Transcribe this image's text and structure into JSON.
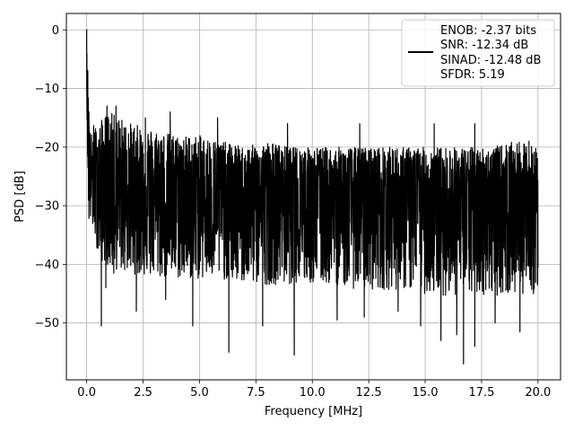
{
  "chart_data": {
    "type": "line",
    "title": "",
    "xlabel": "Frequency [MHz]",
    "ylabel": "PSD [dB]",
    "xlim": [
      -0.9,
      21.0
    ],
    "ylim": [
      -59.7,
      2.8
    ],
    "xticks": [
      0.0,
      2.5,
      5.0,
      7.5,
      10.0,
      12.5,
      15.0,
      17.5,
      20.0
    ],
    "xtick_labels": [
      "0.0",
      "2.5",
      "5.0",
      "7.5",
      "10.0",
      "12.5",
      "15.0",
      "17.5",
      "20.0"
    ],
    "yticks": [
      0,
      -10,
      -20,
      -30,
      -40,
      -50
    ],
    "ytick_labels": [
      "0",
      "−10",
      "−20",
      "−30",
      "−40",
      "−50"
    ],
    "grid": true,
    "legend_placement": "top-right",
    "line_color": "#000000",
    "legend": {
      "lines": [
        "ENOB: -2.37 bits",
        "SNR: -12.34 dB",
        "SINAD: -12.48 dB",
        "SFDR: 5.19"
      ]
    },
    "series": [
      {
        "x": [
          0.0,
          0.02,
          0.05,
          0.08,
          0.1,
          0.15,
          0.2,
          0.3,
          0.5,
          0.7,
          1.0,
          2.0,
          3.0,
          4.0,
          5.0,
          6.0,
          7.0,
          8.0,
          9.0,
          10.0,
          11.0,
          12.0,
          13.0,
          14.0,
          15.0,
          16.0,
          17.0,
          18.0,
          19.0,
          20.0
        ],
        "upper": [
          0,
          -5,
          -8,
          -12,
          -15,
          -17,
          -18,
          -16,
          -17,
          -15,
          -14,
          -16,
          -17,
          -18,
          -18,
          -19,
          -20,
          -19,
          -20,
          -20,
          -20,
          -20,
          -20,
          -20,
          -20,
          -20,
          -20,
          -20,
          -19,
          -20
        ],
        "lower": [
          -10,
          -18,
          -25,
          -30,
          -33,
          -34,
          -35,
          -36,
          -40,
          -42,
          -43,
          -44,
          -45,
          -45,
          -45,
          -45,
          -46,
          -46,
          -46,
          -46,
          -46,
          -47,
          -47,
          -47,
          -48,
          -48,
          -48,
          -48,
          -48,
          -47
        ],
        "median": [
          -5,
          -12,
          -16,
          -20,
          -23,
          -24,
          -25,
          -26,
          -27,
          -27,
          -28,
          -28,
          -28,
          -29,
          -29,
          -29,
          -29,
          -29,
          -29,
          -29,
          -29,
          -29,
          -29,
          -29,
          -29,
          -30,
          -30,
          -30,
          -30,
          -30
        ],
        "deep_nulls": [
          [
            0.65,
            -50.5
          ],
          [
            0.85,
            -44
          ],
          [
            1.2,
            -41.5
          ],
          [
            2.2,
            -48
          ],
          [
            3.5,
            -46
          ],
          [
            4.7,
            -50.5
          ],
          [
            6.3,
            -55
          ],
          [
            7.8,
            -50.5
          ],
          [
            9.2,
            -55.5
          ],
          [
            11.1,
            -49.5
          ],
          [
            12.3,
            -49
          ],
          [
            13.8,
            -48
          ],
          [
            14.8,
            -50.5
          ],
          [
            15.7,
            -53
          ],
          [
            16.4,
            -52
          ],
          [
            16.7,
            -57
          ],
          [
            17.2,
            -54
          ],
          [
            18.1,
            -50
          ],
          [
            19.2,
            -51.5
          ],
          [
            19.8,
            -45
          ]
        ],
        "peaks": [
          [
            0.0,
            0
          ],
          [
            0.05,
            -7
          ],
          [
            0.1,
            -14
          ],
          [
            0.9,
            -13
          ],
          [
            1.3,
            -13
          ],
          [
            2.6,
            -15
          ],
          [
            3.7,
            -14
          ],
          [
            5.8,
            -15
          ],
          [
            8.9,
            -16
          ],
          [
            12.1,
            -16
          ],
          [
            15.4,
            -16
          ],
          [
            17.2,
            -16
          ],
          [
            19.6,
            -19
          ]
        ]
      }
    ]
  }
}
